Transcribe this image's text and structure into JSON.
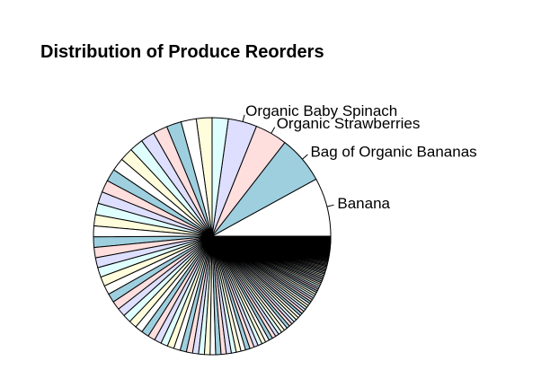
{
  "chart_data": {
    "type": "pie",
    "title": "Distribution of Produce Reorders",
    "labeled_slices": [
      {
        "label": "Banana",
        "percent": 8.0
      },
      {
        "label": "Bag of Organic Bananas",
        "percent": 6.5
      },
      {
        "label": "Organic Strawberries",
        "percent": 4.4
      },
      {
        "label": "Organic Baby Spinach",
        "percent": 3.9
      }
    ],
    "unlabeled_slice_count": 140,
    "fill_cycle": [
      "#ffffff",
      "#9ecfdf",
      "#ffdede",
      "#dedfff",
      "#dfffff",
      "#fffddb"
    ],
    "start_angle_deg": 0,
    "direction": "counterclockwise",
    "legend": "none",
    "grid": false
  }
}
